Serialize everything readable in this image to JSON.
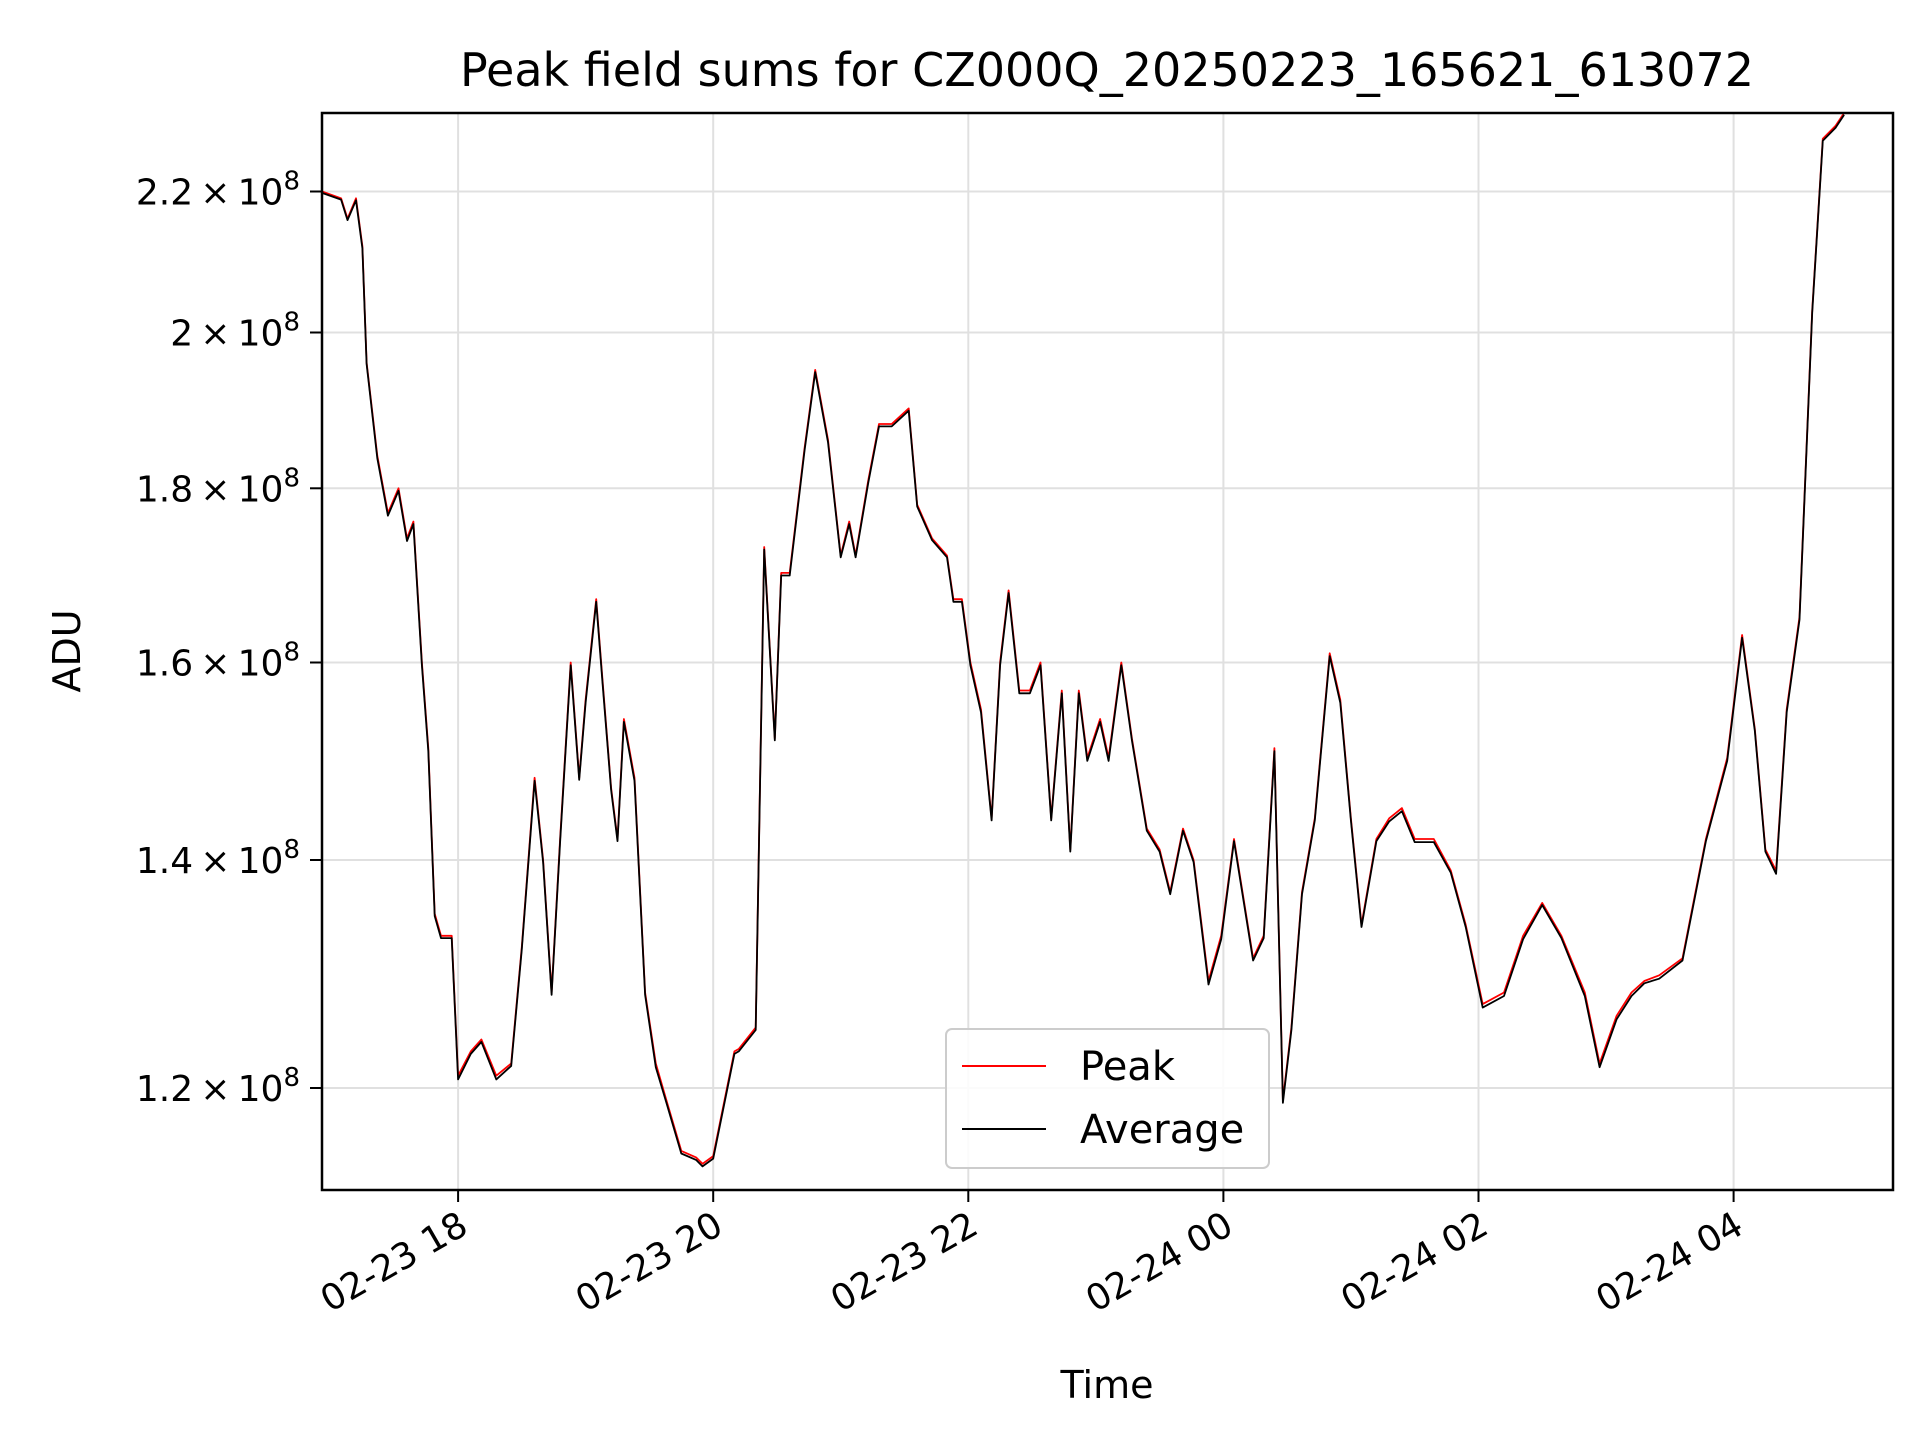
{
  "chart_data": {
    "type": "line",
    "title": "Peak field sums for CZ000Q_20250223_165621_613072",
    "xlabel": "Time",
    "ylabel": "ADU",
    "y_scale": "log",
    "grid": true,
    "legend_position": "lower center",
    "xlim": [
      "2025-02-23 16:56",
      "2025-02-24 05:15"
    ],
    "ylim": [
      112000000,
      232000000
    ],
    "x_ticks": [
      {
        "value": "2025-02-23 18:00",
        "label": "02-23 18"
      },
      {
        "value": "2025-02-23 20:00",
        "label": "02-23 20"
      },
      {
        "value": "2025-02-23 22:00",
        "label": "02-23 22"
      },
      {
        "value": "2025-02-24 00:00",
        "label": "02-24 00"
      },
      {
        "value": "2025-02-24 02:00",
        "label": "02-24 02"
      },
      {
        "value": "2025-02-24 04:00",
        "label": "02-24 04"
      }
    ],
    "y_ticks": [
      {
        "value": 120000000,
        "mantissa": "1.2",
        "exponent": "8"
      },
      {
        "value": 140000000,
        "mantissa": "1.4",
        "exponent": "8"
      },
      {
        "value": 160000000,
        "mantissa": "1.6",
        "exponent": "8"
      },
      {
        "value": 180000000,
        "mantissa": "1.8",
        "exponent": "8"
      },
      {
        "value": 200000000,
        "mantissa": "2",
        "exponent": "8"
      },
      {
        "value": 220000000,
        "mantissa": "2.2",
        "exponent": "8"
      }
    ],
    "colors": {
      "peak": "#ff0000",
      "average": "#000000",
      "grid": "#e0e0e0"
    },
    "series": [
      {
        "name": "Peak",
        "color": "#ff0000"
      },
      {
        "name": "Average",
        "color": "#000000"
      }
    ],
    "x": [
      "2025-02-23 16:56",
      "2025-02-23 17:05",
      "2025-02-23 17:08",
      "2025-02-23 17:12",
      "2025-02-23 17:15",
      "2025-02-23 17:17",
      "2025-02-23 17:22",
      "2025-02-23 17:27",
      "2025-02-23 17:32",
      "2025-02-23 17:36",
      "2025-02-23 17:39",
      "2025-02-23 17:43",
      "2025-02-23 17:46",
      "2025-02-23 17:49",
      "2025-02-23 17:52",
      "2025-02-23 17:57",
      "2025-02-23 18:00",
      "2025-02-23 18:06",
      "2025-02-23 18:11",
      "2025-02-23 18:18",
      "2025-02-23 18:25",
      "2025-02-23 18:30",
      "2025-02-23 18:36",
      "2025-02-23 18:40",
      "2025-02-23 18:44",
      "2025-02-23 18:48",
      "2025-02-23 18:53",
      "2025-02-23 18:57",
      "2025-02-23 19:00",
      "2025-02-23 19:05",
      "2025-02-23 19:08",
      "2025-02-23 19:12",
      "2025-02-23 19:15",
      "2025-02-23 19:18",
      "2025-02-23 19:23",
      "2025-02-23 19:28",
      "2025-02-23 19:33",
      "2025-02-23 19:38",
      "2025-02-23 19:45",
      "2025-02-23 19:52",
      "2025-02-23 19:55",
      "2025-02-23 20:00",
      "2025-02-23 20:10",
      "2025-02-23 20:12",
      "2025-02-23 20:20",
      "2025-02-23 20:24",
      "2025-02-23 20:29",
      "2025-02-23 20:32",
      "2025-02-23 20:36",
      "2025-02-23 20:43",
      "2025-02-23 20:48",
      "2025-02-23 20:54",
      "2025-02-23 21:00",
      "2025-02-23 21:04",
      "2025-02-23 21:07",
      "2025-02-23 21:13",
      "2025-02-23 21:18",
      "2025-02-23 21:24",
      "2025-02-23 21:32",
      "2025-02-23 21:36",
      "2025-02-23 21:43",
      "2025-02-23 21:50",
      "2025-02-23 21:53",
      "2025-02-23 21:57",
      "2025-02-23 22:01",
      "2025-02-23 22:06",
      "2025-02-23 22:11",
      "2025-02-23 22:15",
      "2025-02-23 22:19",
      "2025-02-23 22:24",
      "2025-02-23 22:29",
      "2025-02-23 22:34",
      "2025-02-23 22:39",
      "2025-02-23 22:44",
      "2025-02-23 22:48",
      "2025-02-23 22:52",
      "2025-02-23 22:56",
      "2025-02-23 23:02",
      "2025-02-23 23:06",
      "2025-02-23 23:12",
      "2025-02-23 23:17",
      "2025-02-23 23:24",
      "2025-02-23 23:30",
      "2025-02-23 23:35",
      "2025-02-23 23:41",
      "2025-02-23 23:46",
      "2025-02-23 23:53",
      "2025-02-23 23:59",
      "2025-02-24 00:05",
      "2025-02-24 00:14",
      "2025-02-24 00:19",
      "2025-02-24 00:24",
      "2025-02-24 00:28",
      "2025-02-24 00:32",
      "2025-02-24 00:37",
      "2025-02-24 00:43",
      "2025-02-24 00:50",
      "2025-02-24 00:55",
      "2025-02-24 01:00",
      "2025-02-24 01:05",
      "2025-02-24 01:12",
      "2025-02-24 01:18",
      "2025-02-24 01:24",
      "2025-02-24 01:30",
      "2025-02-24 01:39",
      "2025-02-24 01:47",
      "2025-02-24 01:54",
      "2025-02-24 02:02",
      "2025-02-24 02:12",
      "2025-02-24 02:21",
      "2025-02-24 02:30",
      "2025-02-24 02:39",
      "2025-02-24 02:50",
      "2025-02-24 02:57",
      "2025-02-24 03:05",
      "2025-02-24 03:12",
      "2025-02-24 03:18",
      "2025-02-24 03:25",
      "2025-02-24 03:36",
      "2025-02-24 03:47",
      "2025-02-24 03:57",
      "2025-02-24 04:04",
      "2025-02-24 04:10",
      "2025-02-24 04:15",
      "2025-02-24 04:20",
      "2025-02-24 04:25",
      "2025-02-24 04:31",
      "2025-02-24 04:37",
      "2025-02-24 04:42",
      "2025-02-24 04:48",
      "2025-02-24 04:52",
      "2025-02-24 04:58",
      "2025-02-24 05:03",
      "2025-02-24 05:09",
      "2025-02-24 05:15"
    ],
    "peak": [
      220000000,
      219000000,
      216000000,
      219000000,
      212000000,
      196000000,
      184000000,
      177000000,
      180000000,
      174000000,
      176000000,
      160000000,
      151000000,
      135000000,
      133000000,
      133000000,
      121000000,
      123000000,
      124000000,
      121000000,
      122000000,
      132000000,
      148000000,
      140000000,
      128000000,
      142000000,
      160000000,
      148000000,
      156000000,
      167000000,
      158000000,
      147000000,
      142000000,
      154000000,
      148000000,
      128000000,
      122000000,
      119000000,
      115000000,
      114500000,
      114000000,
      114600000,
      123000000,
      123200000,
      125000000,
      173000000,
      152000000,
      170000000,
      170000000,
      185000000,
      195000000,
      186000000,
      172000000,
      176000000,
      172000000,
      181000000,
      188000000,
      188000000,
      190000000,
      178000000,
      174000000,
      172000000,
      167000000,
      167000000,
      160000000,
      155000000,
      144000000,
      160000000,
      168000000,
      157000000,
      157000000,
      160000000,
      144000000,
      157000000,
      141000000,
      157000000,
      150000000,
      154000000,
      150000000,
      160000000,
      152000000,
      143000000,
      141000000,
      137000000,
      143000000,
      140000000,
      129000000,
      133000000,
      142000000,
      131000000,
      133000000,
      151000000,
      119000000,
      125000000,
      137000000,
      144000000,
      161000000,
      156000000,
      144000000,
      134000000,
      142000000,
      144000000,
      145000000,
      142000000,
      142000000,
      139000000,
      134000000,
      127000000,
      128000000,
      133000000,
      136000000,
      133000000,
      128000000,
      122000000,
      126000000,
      128000000,
      129000000,
      129500000,
      131000000,
      142000000,
      150000000,
      163000000,
      153000000,
      141000000,
      139000000,
      155000000,
      165000000,
      203000000,
      228000000,
      230000000,
      232000000
    ],
    "average": [
      219800000,
      218800000,
      215800000,
      218700000,
      211700000,
      195800000,
      183700000,
      176700000,
      179700000,
      173700000,
      175700000,
      159700000,
      150700000,
      134800000,
      132800000,
      132800000,
      120700000,
      122800000,
      123800000,
      120700000,
      121800000,
      131800000,
      147700000,
      139800000,
      127800000,
      141700000,
      159700000,
      147800000,
      155700000,
      166700000,
      157700000,
      146800000,
      141800000,
      153700000,
      147700000,
      127800000,
      121700000,
      118800000,
      114800000,
      114300000,
      113800000,
      114400000,
      122800000,
      123000000,
      124800000,
      172700000,
      151800000,
      169700000,
      169700000,
      184700000,
      194700000,
      185700000,
      171800000,
      175700000,
      171800000,
      180700000,
      187700000,
      187700000,
      189700000,
      177800000,
      173800000,
      171800000,
      166700000,
      166700000,
      159700000,
      154700000,
      143800000,
      159700000,
      167700000,
      156700000,
      156700000,
      159700000,
      143800000,
      156700000,
      140800000,
      156700000,
      149700000,
      153700000,
      149700000,
      159700000,
      151800000,
      142800000,
      140800000,
      136800000,
      142800000,
      139800000,
      128700000,
      132700000,
      141800000,
      130800000,
      132800000,
      150700000,
      118800000,
      124800000,
      136800000,
      143800000,
      160700000,
      155700000,
      143800000,
      133800000,
      141800000,
      143700000,
      144700000,
      141700000,
      141700000,
      138800000,
      133800000,
      126700000,
      127700000,
      132700000,
      135800000,
      132800000,
      127700000,
      121700000,
      125700000,
      127700000,
      128800000,
      129200000,
      130800000,
      141800000,
      149700000,
      162700000,
      152800000,
      140800000,
      138700000,
      154700000,
      164700000,
      202700000,
      227700000,
      229700000,
      231700000
    ]
  }
}
